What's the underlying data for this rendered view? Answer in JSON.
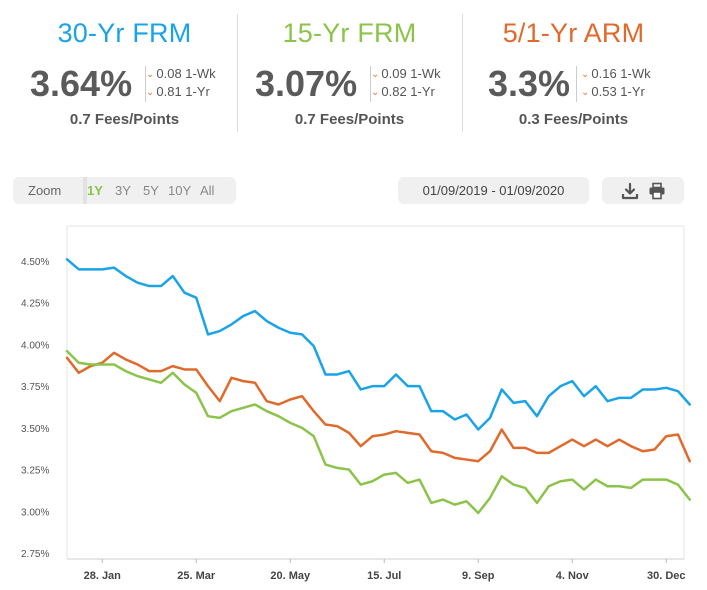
{
  "cards": [
    {
      "title": "30-Yr FRM",
      "color": "#1ba3e8",
      "rate": "3.64%",
      "wk": "0.08 1-Wk",
      "yr": "0.81 1-Yr",
      "fees": "0.7 Fees/Points"
    },
    {
      "title": "15-Yr FRM",
      "color": "#8cc34a",
      "rate": "3.07%",
      "wk": "0.09 1-Wk",
      "yr": "0.82 1-Yr",
      "fees": "0.7 Fees/Points"
    },
    {
      "title": "5/1-Yr ARM",
      "color": "#e06a2c",
      "rate": "3.3%",
      "wk": "0.16 1-Wk",
      "yr": "0.53 1-Yr",
      "fees": "0.3 Fees/Points"
    }
  ],
  "controls": {
    "zoom_label": "Zoom",
    "zoom_options": [
      "1Y",
      "3Y",
      "5Y",
      "10Y",
      "All"
    ],
    "active_zoom": "1Y",
    "date_range": "01/09/2019 - 01/09/2020",
    "download_icon": "download-icon",
    "print_icon": "print-icon"
  },
  "chart_data": {
    "type": "line",
    "x_tick_labels": [
      "28. Jan",
      "25. Mar",
      "20. May",
      "15. Jul",
      "9. Sep",
      "4. Nov",
      "30. Dec"
    ],
    "x_tick_weeks": [
      3,
      11,
      19,
      27,
      35,
      43,
      51
    ],
    "x_range_weeks": [
      0,
      52
    ],
    "y_tick_labels": [
      "2.75%",
      "3.00%",
      "3.25%",
      "3.50%",
      "3.75%",
      "4.00%",
      "4.25%",
      "4.50%"
    ],
    "ylim": [
      2.75,
      4.5
    ],
    "grid": false,
    "series": [
      {
        "color": "#1ba3e8",
        "values": [
          4.51,
          4.45,
          4.45,
          4.45,
          4.46,
          4.41,
          4.37,
          4.35,
          4.35,
          4.41,
          4.31,
          4.28,
          4.06,
          4.08,
          4.12,
          4.17,
          4.2,
          4.14,
          4.1,
          4.07,
          4.06,
          3.99,
          3.82,
          3.82,
          3.84,
          3.73,
          3.75,
          3.75,
          3.82,
          3.75,
          3.75,
          3.6,
          3.6,
          3.55,
          3.58,
          3.49,
          3.56,
          3.73,
          3.65,
          3.66,
          3.57,
          3.69,
          3.75,
          3.78,
          3.69,
          3.75,
          3.66,
          3.68,
          3.68,
          3.73,
          3.73,
          3.74,
          3.72,
          3.64
        ]
      },
      {
        "color": "#e06a2c",
        "values": [
          3.92,
          3.83,
          3.87,
          3.89,
          3.95,
          3.91,
          3.88,
          3.84,
          3.84,
          3.87,
          3.85,
          3.85,
          3.75,
          3.66,
          3.8,
          3.78,
          3.77,
          3.66,
          3.64,
          3.67,
          3.69,
          3.6,
          3.52,
          3.51,
          3.47,
          3.39,
          3.45,
          3.46,
          3.48,
          3.47,
          3.46,
          3.36,
          3.35,
          3.32,
          3.31,
          3.3,
          3.36,
          3.49,
          3.38,
          3.38,
          3.35,
          3.35,
          3.39,
          3.43,
          3.39,
          3.43,
          3.39,
          3.43,
          3.39,
          3.36,
          3.37,
          3.45,
          3.46,
          3.3
        ]
      },
      {
        "color": "#8cc34a",
        "values": [
          3.96,
          3.89,
          3.88,
          3.88,
          3.88,
          3.84,
          3.81,
          3.79,
          3.77,
          3.83,
          3.76,
          3.71,
          3.57,
          3.56,
          3.6,
          3.62,
          3.64,
          3.6,
          3.57,
          3.53,
          3.5,
          3.45,
          3.28,
          3.26,
          3.25,
          3.16,
          3.18,
          3.22,
          3.23,
          3.17,
          3.19,
          3.05,
          3.07,
          3.04,
          3.06,
          2.99,
          3.08,
          3.21,
          3.16,
          3.14,
          3.05,
          3.15,
          3.18,
          3.19,
          3.13,
          3.19,
          3.15,
          3.15,
          3.14,
          3.19,
          3.19,
          3.19,
          3.16,
          3.07
        ]
      }
    ]
  }
}
